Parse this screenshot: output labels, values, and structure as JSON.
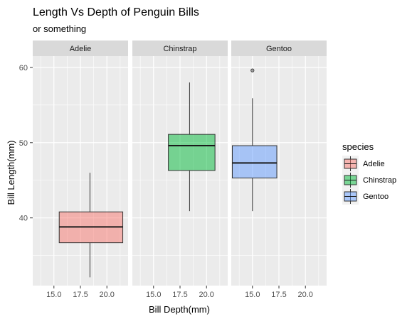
{
  "chart_data": {
    "type": "boxplot",
    "title": "Length Vs Depth of Penguin Bills",
    "subtitle": "or something",
    "xlabel": "Bill Depth(mm)",
    "ylabel": "Bill Length(mm)",
    "xlim": [
      13.0,
      22.0
    ],
    "ylim": [
      31.0,
      61.5
    ],
    "x_ticks": [
      15.0,
      17.5,
      20.0
    ],
    "x_tick_labels": [
      "15.0",
      "17.5",
      "20.0"
    ],
    "y_ticks": [
      40,
      50,
      60
    ],
    "y_tick_labels": [
      "40",
      "50",
      "60"
    ],
    "facets": [
      "Adelie",
      "Chinstrap",
      "Gentoo"
    ],
    "legend": {
      "title": "species",
      "position": "right",
      "items": [
        {
          "label": "Adelie",
          "color": "#F8766D"
        },
        {
          "label": "Chinstrap",
          "color": "#00BA38"
        },
        {
          "label": "Gentoo",
          "color": "#619CFF"
        }
      ]
    },
    "series": [
      {
        "facet": "Adelie",
        "color": "#F8766D",
        "x_min": 15.5,
        "x_max": 21.5,
        "x_center": 18.4,
        "whisker_low": 32.1,
        "q1": 36.7,
        "median": 38.8,
        "q3": 40.8,
        "whisker_high": 46.0,
        "outliers": []
      },
      {
        "facet": "Chinstrap",
        "color": "#00BA38",
        "x_min": 16.4,
        "x_max": 20.8,
        "x_center": 18.4,
        "whisker_low": 40.9,
        "q1": 46.3,
        "median": 49.6,
        "q3": 51.1,
        "whisker_high": 58.0,
        "outliers": []
      },
      {
        "facet": "Gentoo",
        "color": "#619CFF",
        "x_min": 13.1,
        "x_max": 17.3,
        "x_center": 15.0,
        "whisker_low": 40.9,
        "q1": 45.3,
        "median": 47.3,
        "q3": 49.6,
        "whisker_high": 55.9,
        "outliers": [
          59.6
        ]
      }
    ],
    "grid": true
  }
}
